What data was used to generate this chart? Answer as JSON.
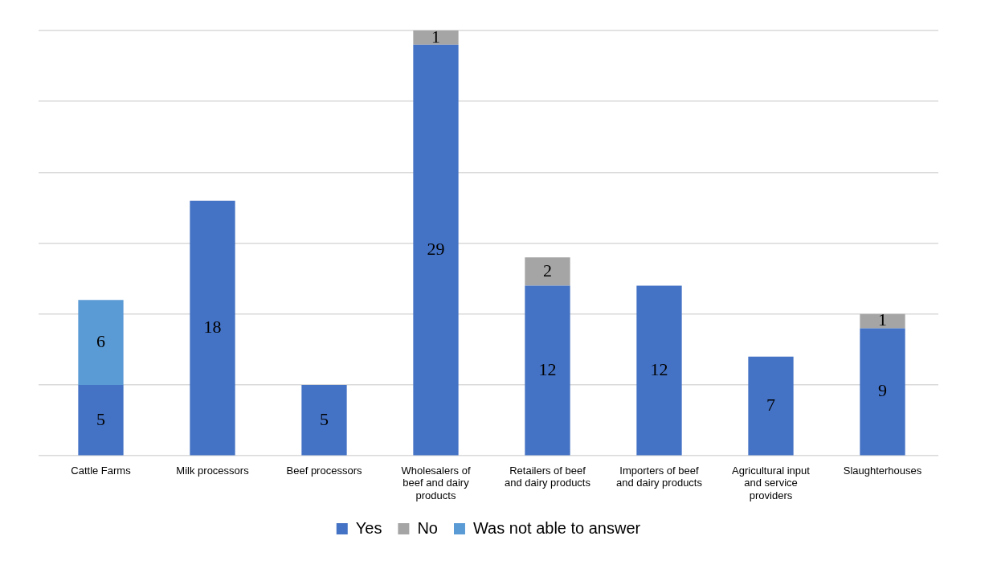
{
  "chart_data": {
    "type": "bar",
    "stacked": true,
    "categories": [
      "Cattle Farms",
      "Milk processors",
      "Beef processors",
      "Wholesalers of beef and dairy products",
      "Retailers of beef and dairy products",
      "Importers of beef and dairy products",
      "Agricultural input and service providers",
      "Slaughterhouses"
    ],
    "series": [
      {
        "name": "Yes",
        "color": "#4472c4",
        "values": [
          5,
          18,
          5,
          29,
          12,
          12,
          7,
          9
        ]
      },
      {
        "name": "No",
        "color": "#a5a5a5",
        "values": [
          null,
          null,
          null,
          1,
          2,
          null,
          null,
          1
        ]
      },
      {
        "name": "Was not able to answer",
        "color": "#5b9bd5",
        "values": [
          6,
          null,
          null,
          null,
          null,
          null,
          null,
          null
        ]
      }
    ],
    "ylim": [
      0,
      30
    ],
    "yticks": [
      {
        "value": 0,
        "label": null
      },
      {
        "value": 5,
        "label": null
      },
      {
        "value": 10,
        "label": null
      },
      {
        "value": 15,
        "label": null
      },
      {
        "value": 20,
        "label": null
      },
      {
        "value": 25,
        "label": null
      },
      {
        "value": 30,
        "label": null
      }
    ],
    "tick_labels": "x",
    "grid": "y",
    "legend": "bottom",
    "data_labels": true
  }
}
